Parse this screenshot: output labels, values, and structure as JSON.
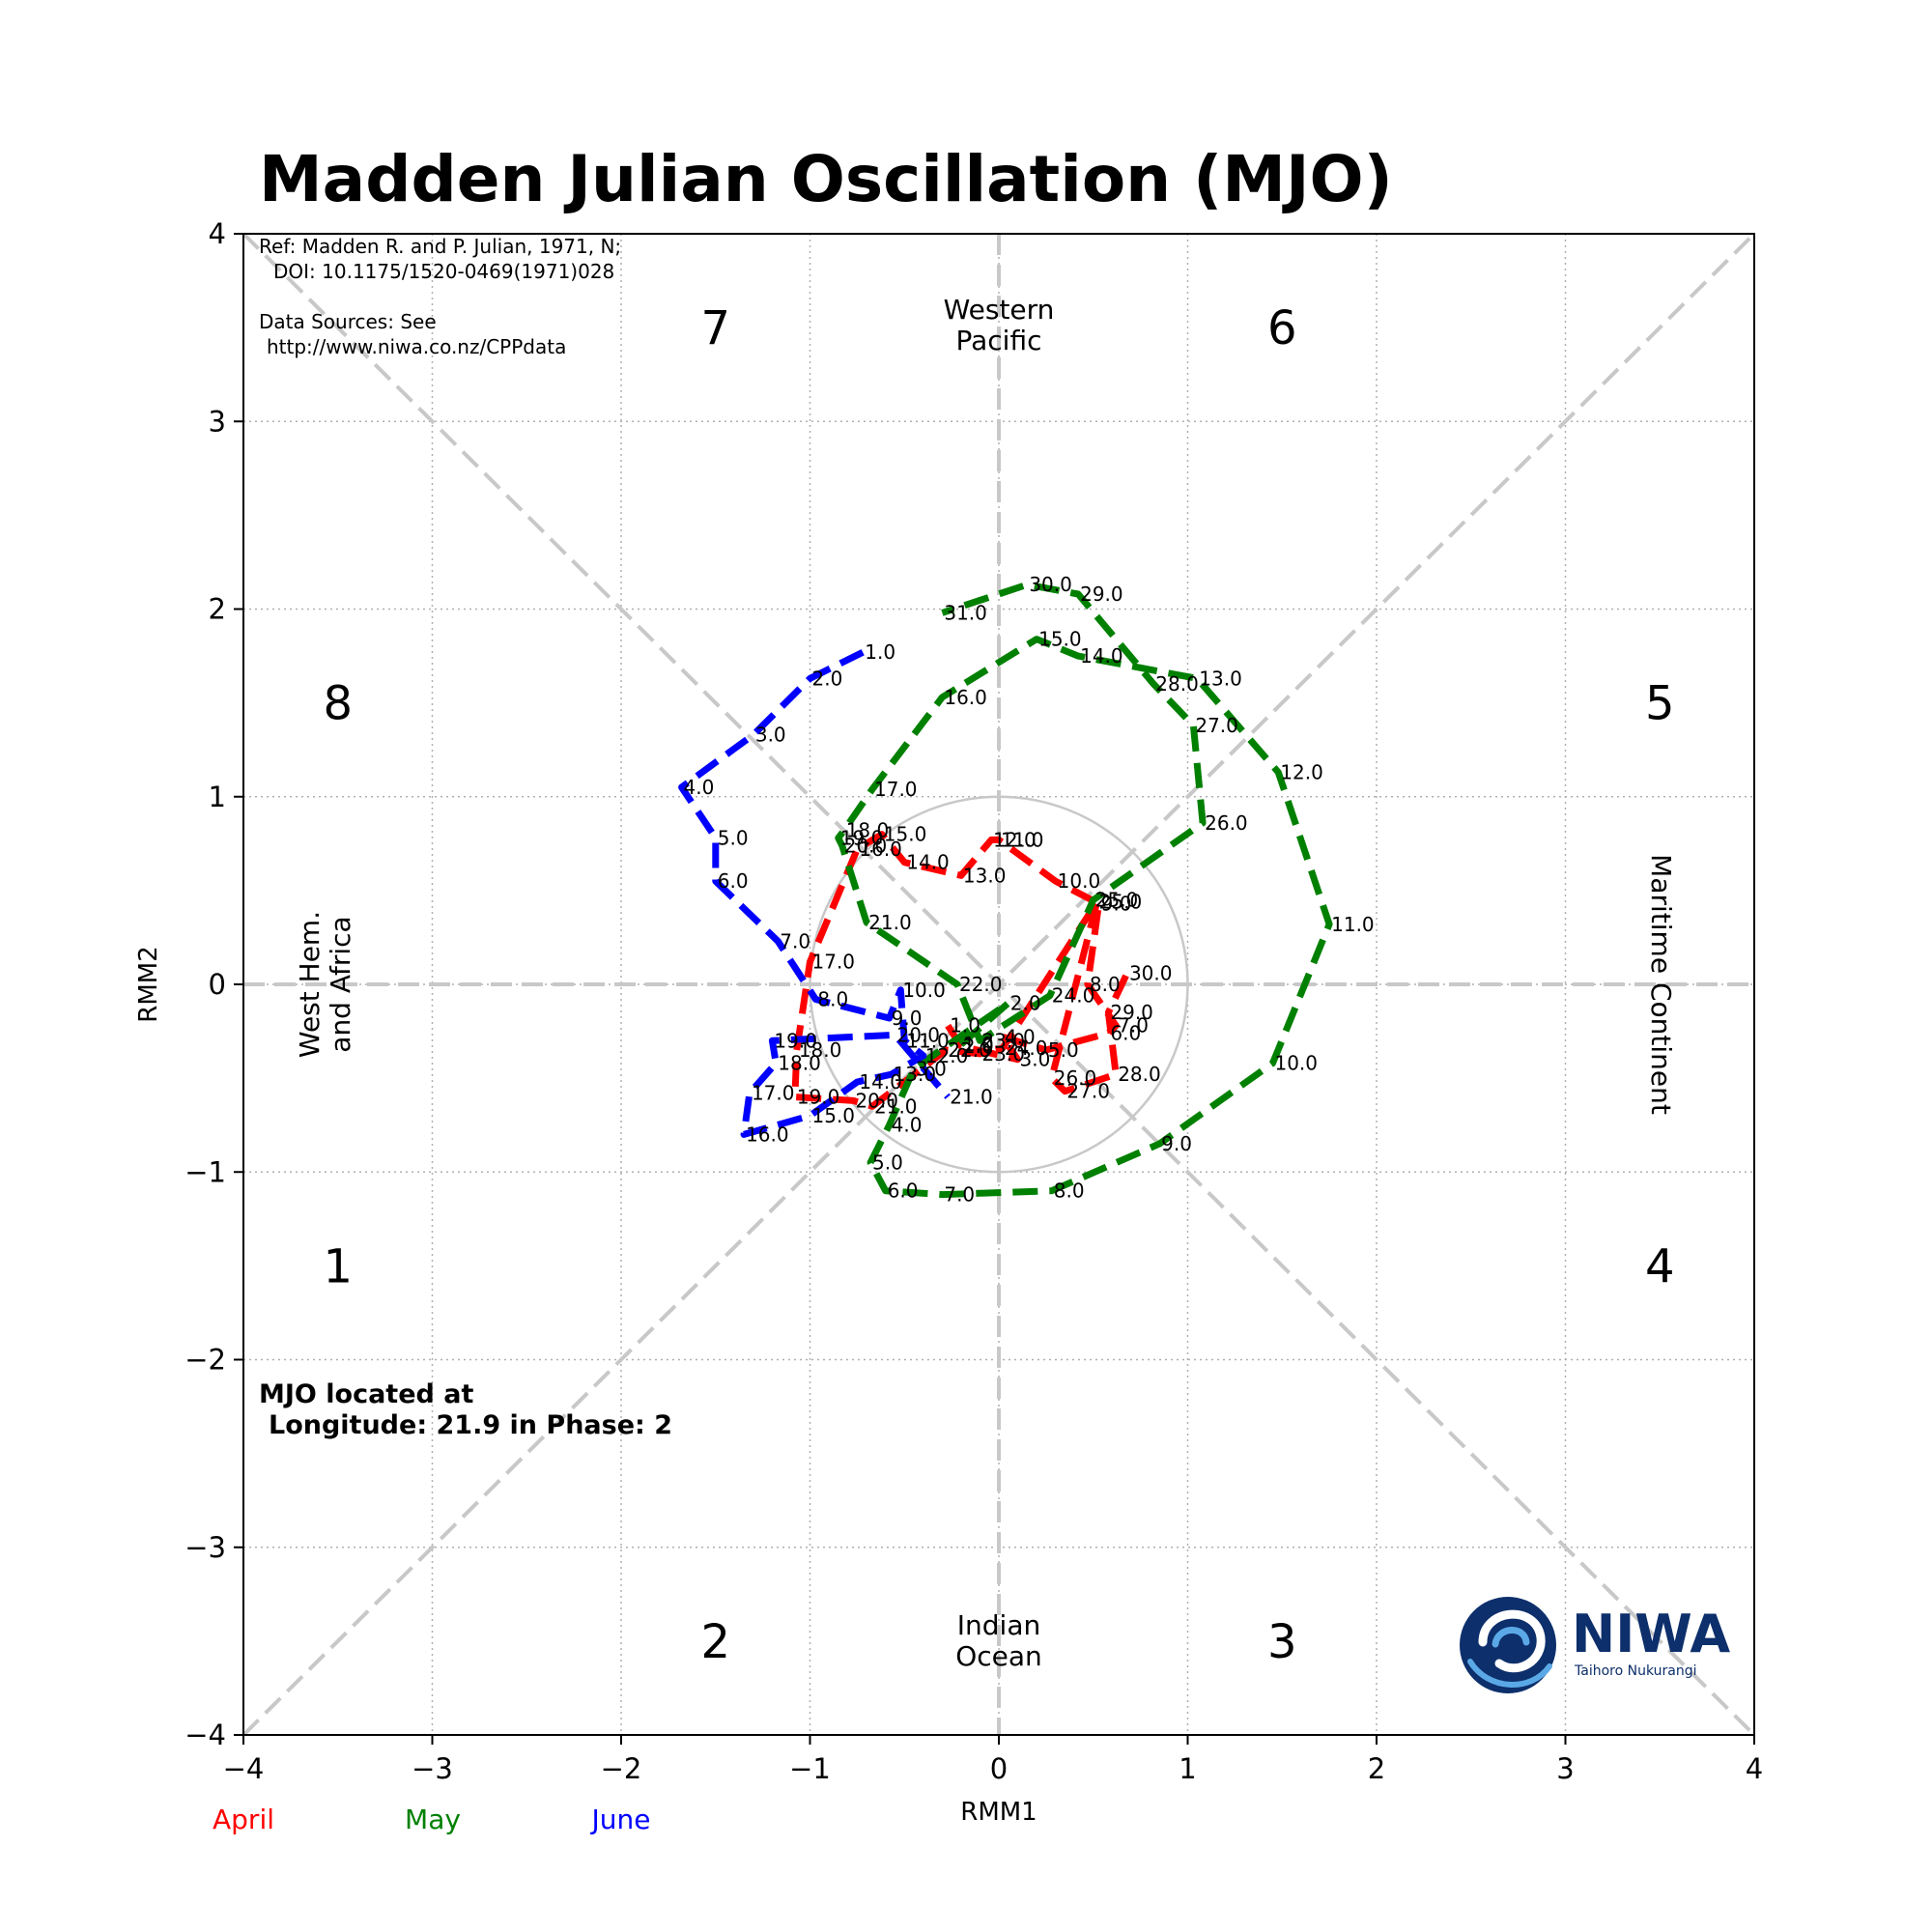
{
  "title": "Madden Julian Oscillation (MJO)",
  "reference": {
    "line1": "Ref: Madden R. and P. Julian, 1971, N;",
    "line2": "DOI: 10.1175/1520-0469(1971)028",
    "line3": "Data Sources: See",
    "line4": "http://www.niwa.co.nz/CPPdata"
  },
  "location_note": {
    "line1": "MJO located at",
    "line2": "Longitude: 21.9 in Phase: 2"
  },
  "regions": {
    "top": [
      "Western",
      "Pacific"
    ],
    "bottom": [
      "Indian",
      "Ocean"
    ],
    "left": [
      "West Hem.",
      "and Africa"
    ],
    "right": "Maritime Continent"
  },
  "phases": [
    {
      "label": "1",
      "x": -3.5,
      "y": -1.5
    },
    {
      "label": "2",
      "x": -1.5,
      "y": -3.5
    },
    {
      "label": "3",
      "x": 1.5,
      "y": -3.5
    },
    {
      "label": "4",
      "x": 3.5,
      "y": -1.5
    },
    {
      "label": "5",
      "x": 3.5,
      "y": 1.5
    },
    {
      "label": "6",
      "x": 1.5,
      "y": 3.5
    },
    {
      "label": "7",
      "x": -1.5,
      "y": 3.5
    },
    {
      "label": "8",
      "x": -3.5,
      "y": 1.5
    }
  ],
  "logo": {
    "name": "NIWA",
    "subtitle": "Taihoro Nukurangi"
  },
  "colors": {
    "april": "#ff0000",
    "may": "#008000",
    "june": "#0000ff",
    "guide": "#c8c8c8"
  },
  "chart_data": {
    "type": "line",
    "xlabel": "RMM1",
    "ylabel": "RMM2",
    "xlim": [
      -4,
      4
    ],
    "ylim": [
      -4,
      4
    ],
    "xticks": [
      "−4",
      "−3",
      "−2",
      "−1",
      "0",
      "1",
      "2",
      "3",
      "4"
    ],
    "yticks": [
      "−4",
      "−3",
      "−2",
      "−1",
      "0",
      "1",
      "2",
      "3",
      "4"
    ],
    "grid": true,
    "unit_circle_radius": 1,
    "legend": [
      "April",
      "May",
      "June"
    ],
    "series": [
      {
        "name": "April",
        "color": "#ff0000",
        "points": [
          {
            "day": "1.0",
            "x": -0.27,
            "y": -0.22
          },
          {
            "day": "2.0",
            "x": -0.2,
            "y": -0.33
          },
          {
            "day": "3.0",
            "x": 0.1,
            "y": -0.4
          },
          {
            "day": "4.0",
            "x": 0.02,
            "y": -0.28
          },
          {
            "day": "5.0",
            "x": 0.25,
            "y": -0.35
          },
          {
            "day": "6.0",
            "x": 0.58,
            "y": -0.26
          },
          {
            "day": "7.0",
            "x": 0.62,
            "y": -0.22
          },
          {
            "day": "8.0",
            "x": 0.47,
            "y": 0.0
          },
          {
            "day": "9.0",
            "x": 0.53,
            "y": 0.43
          },
          {
            "day": "10.0",
            "x": 0.3,
            "y": 0.55
          },
          {
            "day": "11.0",
            "x": 0.0,
            "y": 0.77
          },
          {
            "day": "12.0",
            "x": -0.04,
            "y": 0.77
          },
          {
            "day": "13.0",
            "x": -0.2,
            "y": 0.58
          },
          {
            "day": "14.0",
            "x": -0.5,
            "y": 0.65
          },
          {
            "day": "15.0",
            "x": -0.62,
            "y": 0.8
          },
          {
            "day": "16.0",
            "x": -0.75,
            "y": 0.72
          },
          {
            "day": "17.0",
            "x": -1.0,
            "y": 0.12
          },
          {
            "day": "18.0",
            "x": -1.07,
            "y": -0.35
          },
          {
            "day": "19.0",
            "x": -1.08,
            "y": -0.6
          },
          {
            "day": "20.0",
            "x": -0.77,
            "y": -0.62
          },
          {
            "day": "21.0",
            "x": -0.67,
            "y": -0.65
          },
          {
            "day": "22.0",
            "x": -0.28,
            "y": -0.35
          },
          {
            "day": "23.0",
            "x": -0.1,
            "y": -0.37
          },
          {
            "day": "24.0",
            "x": 0.02,
            "y": -0.34
          },
          {
            "day": "25.0",
            "x": 0.52,
            "y": 0.44
          },
          {
            "day": "26.0",
            "x": 0.28,
            "y": -0.5
          },
          {
            "day": "27.0",
            "x": 0.35,
            "y": -0.57
          },
          {
            "day": "28.0",
            "x": 0.62,
            "y": -0.48
          },
          {
            "day": "29.0",
            "x": 0.58,
            "y": -0.15
          },
          {
            "day": "30.0",
            "x": 0.68,
            "y": 0.06
          }
        ]
      },
      {
        "name": "May",
        "color": "#008000",
        "points": [
          {
            "day": "1.0",
            "x": -0.2,
            "y": -0.32
          },
          {
            "day": "2.0",
            "x": 0.05,
            "y": -0.1
          },
          {
            "day": "3.0",
            "x": -0.45,
            "y": -0.45
          },
          {
            "day": "4.0",
            "x": -0.58,
            "y": -0.75
          },
          {
            "day": "5.0",
            "x": -0.68,
            "y": -0.95
          },
          {
            "day": "6.0",
            "x": -0.6,
            "y": -1.1
          },
          {
            "day": "7.0",
            "x": -0.3,
            "y": -1.12
          },
          {
            "day": "8.0",
            "x": 0.28,
            "y": -1.1
          },
          {
            "day": "9.0",
            "x": 0.85,
            "y": -0.85
          },
          {
            "day": "10.0",
            "x": 1.45,
            "y": -0.42
          },
          {
            "day": "11.0",
            "x": 1.75,
            "y": 0.32
          },
          {
            "day": "12.0",
            "x": 1.48,
            "y": 1.13
          },
          {
            "day": "13.0",
            "x": 1.05,
            "y": 1.63
          },
          {
            "day": "14.0",
            "x": 0.42,
            "y": 1.75
          },
          {
            "day": "15.0",
            "x": 0.2,
            "y": 1.84
          },
          {
            "day": "16.0",
            "x": -0.3,
            "y": 1.53
          },
          {
            "day": "17.0",
            "x": -0.67,
            "y": 1.04
          },
          {
            "day": "18.0",
            "x": -0.82,
            "y": 0.82
          },
          {
            "day": "19.0",
            "x": -0.85,
            "y": 0.78
          },
          {
            "day": "20.0",
            "x": -0.83,
            "y": 0.74
          },
          {
            "day": "21.0",
            "x": -0.7,
            "y": 0.33
          },
          {
            "day": "22.0",
            "x": -0.22,
            "y": 0.0
          },
          {
            "day": "23.0",
            "x": -0.1,
            "y": -0.3
          },
          {
            "day": "24.0",
            "x": 0.27,
            "y": -0.06
          },
          {
            "day": "25.0",
            "x": 0.5,
            "y": 0.45
          },
          {
            "day": "26.0",
            "x": 1.08,
            "y": 0.86
          },
          {
            "day": "27.0",
            "x": 1.03,
            "y": 1.38
          },
          {
            "day": "28.0",
            "x": 0.82,
            "y": 1.6
          },
          {
            "day": "29.0",
            "x": 0.42,
            "y": 2.08
          },
          {
            "day": "30.0",
            "x": 0.15,
            "y": 2.13
          },
          {
            "day": "31.0",
            "x": -0.3,
            "y": 1.98
          }
        ]
      },
      {
        "name": "June",
        "color": "#0000ff",
        "points": [
          {
            "day": "1.0",
            "x": -0.72,
            "y": 1.77
          },
          {
            "day": "2.0",
            "x": -1.0,
            "y": 1.63
          },
          {
            "day": "3.0",
            "x": -1.3,
            "y": 1.33
          },
          {
            "day": "4.0",
            "x": -1.68,
            "y": 1.05
          },
          {
            "day": "5.0",
            "x": -1.5,
            "y": 0.78
          },
          {
            "day": "6.0",
            "x": -1.5,
            "y": 0.55
          },
          {
            "day": "7.0",
            "x": -1.17,
            "y": 0.23
          },
          {
            "day": "8.0",
            "x": -0.97,
            "y": -0.08
          },
          {
            "day": "9.0",
            "x": -0.58,
            "y": -0.18
          },
          {
            "day": "10.0",
            "x": -0.52,
            "y": -0.03
          },
          {
            "day": "11.0",
            "x": -0.5,
            "y": -0.3
          },
          {
            "day": "12.0",
            "x": -0.4,
            "y": -0.38
          },
          {
            "day": "13.0",
            "x": -0.57,
            "y": -0.48
          },
          {
            "day": "14.0",
            "x": -0.75,
            "y": -0.52
          },
          {
            "day": "15.0",
            "x": -1.0,
            "y": -0.7
          },
          {
            "day": "16.0",
            "x": -1.35,
            "y": -0.8
          },
          {
            "day": "17.0",
            "x": -1.32,
            "y": -0.58
          },
          {
            "day": "18.0",
            "x": -1.18,
            "y": -0.42
          },
          {
            "day": "19.0",
            "x": -1.2,
            "y": -0.3
          },
          {
            "day": "20.0",
            "x": -0.55,
            "y": -0.27
          },
          {
            "day": "21.0",
            "x": -0.27,
            "y": -0.6
          }
        ]
      }
    ]
  }
}
